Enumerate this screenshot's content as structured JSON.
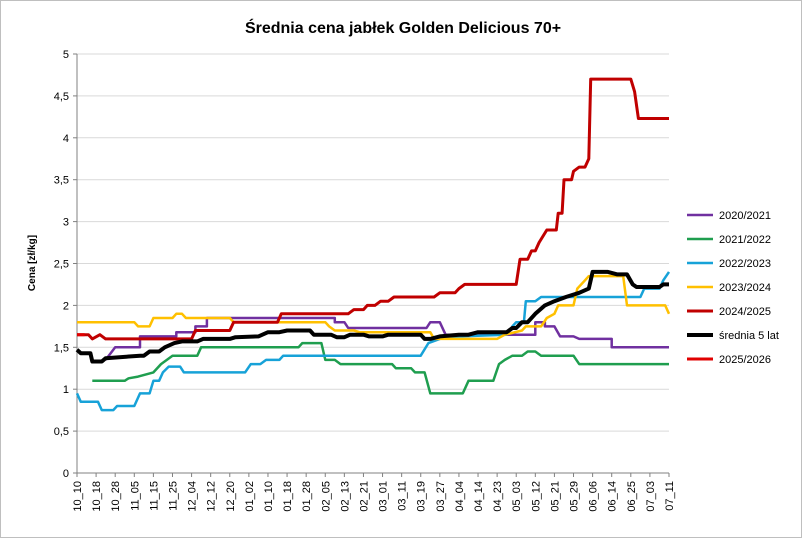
{
  "chart_data": {
    "type": "line",
    "title": "Średnia cena jabłek Golden Delicious 70+",
    "ylabel": "Cena [zł/kg]",
    "xlabel": "",
    "ylim": [
      0,
      5
    ],
    "y_ticks": [
      "0",
      "0,5",
      "1",
      "1,5",
      "2",
      "2,5",
      "3",
      "3,5",
      "4",
      "4,5",
      "5"
    ],
    "grid": "horizontal",
    "legend_position": "right",
    "x_ticks": [
      "10_10",
      "10_18",
      "10_28",
      "11_05",
      "11_15",
      "11_25",
      "12_04",
      "12_12",
      "12_20",
      "01_02",
      "01_10",
      "01_18",
      "01_28",
      "02_05",
      "02_13",
      "02_21",
      "03_01",
      "03_11",
      "03_19",
      "03_27",
      "04_04",
      "04_14",
      "04_23",
      "05_03",
      "05_12",
      "05_21",
      "05_29",
      "06_06",
      "06_14",
      "06_25",
      "07_03",
      "07_11"
    ],
    "series": [
      {
        "name": "2020/2021",
        "color": "#7030a0",
        "width": 2.5,
        "points": [
          [
            1.5,
            1.35
          ],
          [
            2,
            1.5
          ],
          [
            3.3,
            1.5
          ],
          [
            3.3,
            1.63
          ],
          [
            5.2,
            1.63
          ],
          [
            5.2,
            1.68
          ],
          [
            6.2,
            1.68
          ],
          [
            6.2,
            1.75
          ],
          [
            6.8,
            1.75
          ],
          [
            6.8,
            1.85
          ],
          [
            12.2,
            1.85
          ],
          [
            12.2,
            1.85
          ],
          [
            13.5,
            1.85
          ],
          [
            13.5,
            1.8
          ],
          [
            14,
            1.8
          ],
          [
            14.2,
            1.73
          ],
          [
            18.3,
            1.73
          ],
          [
            18.5,
            1.8
          ],
          [
            19,
            1.8
          ],
          [
            19.3,
            1.65
          ],
          [
            24,
            1.65
          ],
          [
            24,
            1.8
          ],
          [
            24.5,
            1.8
          ],
          [
            24.5,
            1.75
          ],
          [
            25,
            1.75
          ],
          [
            25.3,
            1.63
          ],
          [
            26,
            1.63
          ],
          [
            26.3,
            1.6
          ],
          [
            28,
            1.6
          ],
          [
            28,
            1.5
          ],
          [
            31,
            1.5
          ]
        ]
      },
      {
        "name": "2021/2022",
        "color": "#1f9e4f",
        "width": 2.5,
        "points": [
          [
            0.8,
            1.1
          ],
          [
            2.5,
            1.1
          ],
          [
            2.7,
            1.13
          ],
          [
            3.2,
            1.15
          ],
          [
            4,
            1.2
          ],
          [
            4.4,
            1.3
          ],
          [
            5,
            1.4
          ],
          [
            6.3,
            1.4
          ],
          [
            6.5,
            1.5
          ],
          [
            11.6,
            1.5
          ],
          [
            11.8,
            1.55
          ],
          [
            12.8,
            1.55
          ],
          [
            13,
            1.35
          ],
          [
            13.5,
            1.35
          ],
          [
            13.8,
            1.3
          ],
          [
            16.5,
            1.3
          ],
          [
            16.7,
            1.25
          ],
          [
            17.5,
            1.25
          ],
          [
            17.7,
            1.2
          ],
          [
            18.2,
            1.2
          ],
          [
            18.5,
            0.95
          ],
          [
            20.2,
            0.95
          ],
          [
            20.5,
            1.1
          ],
          [
            21.8,
            1.1
          ],
          [
            22.1,
            1.3
          ],
          [
            22.4,
            1.35
          ],
          [
            22.8,
            1.4
          ],
          [
            23.3,
            1.4
          ],
          [
            23.6,
            1.45
          ],
          [
            24,
            1.45
          ],
          [
            24.3,
            1.4
          ],
          [
            26,
            1.4
          ],
          [
            26.3,
            1.3
          ],
          [
            31,
            1.3
          ]
        ]
      },
      {
        "name": "2022/2023",
        "color": "#17a2d8",
        "width": 2.5,
        "points": [
          [
            0,
            0.95
          ],
          [
            0.2,
            0.85
          ],
          [
            1.1,
            0.85
          ],
          [
            1.3,
            0.75
          ],
          [
            1.9,
            0.75
          ],
          [
            2.1,
            0.8
          ],
          [
            3,
            0.8
          ],
          [
            3.3,
            0.95
          ],
          [
            3.8,
            0.95
          ],
          [
            4,
            1.1
          ],
          [
            4.3,
            1.1
          ],
          [
            4.5,
            1.2
          ],
          [
            4.8,
            1.27
          ],
          [
            5.4,
            1.27
          ],
          [
            5.6,
            1.2
          ],
          [
            8.8,
            1.2
          ],
          [
            9.1,
            1.3
          ],
          [
            9.6,
            1.3
          ],
          [
            9.9,
            1.35
          ],
          [
            10.6,
            1.35
          ],
          [
            10.8,
            1.4
          ],
          [
            18,
            1.4
          ],
          [
            18.4,
            1.55
          ],
          [
            19,
            1.6
          ],
          [
            20,
            1.63
          ],
          [
            22.5,
            1.65
          ],
          [
            22.8,
            1.75
          ],
          [
            23,
            1.8
          ],
          [
            23.4,
            1.8
          ],
          [
            23.5,
            2.05
          ],
          [
            24,
            2.05
          ],
          [
            24.3,
            2.1
          ],
          [
            25.5,
            2.1
          ],
          [
            25.8,
            2.1
          ],
          [
            29.5,
            2.1
          ],
          [
            29.7,
            2.2
          ],
          [
            30.5,
            2.2
          ],
          [
            30.7,
            2.3
          ],
          [
            31,
            2.4
          ]
        ]
      },
      {
        "name": "2023/2024",
        "color": "#ffc000",
        "width": 2.5,
        "points": [
          [
            0,
            1.8
          ],
          [
            3,
            1.8
          ],
          [
            3.2,
            1.75
          ],
          [
            3.8,
            1.75
          ],
          [
            4,
            1.85
          ],
          [
            5,
            1.85
          ],
          [
            5.2,
            1.9
          ],
          [
            5.5,
            1.9
          ],
          [
            5.7,
            1.85
          ],
          [
            8,
            1.85
          ],
          [
            8.2,
            1.8
          ],
          [
            13,
            1.8
          ],
          [
            13.2,
            1.75
          ],
          [
            13.5,
            1.7
          ],
          [
            14.5,
            1.7
          ],
          [
            14.8,
            1.68
          ],
          [
            18.5,
            1.68
          ],
          [
            18.7,
            1.6
          ],
          [
            22,
            1.6
          ],
          [
            22.4,
            1.65
          ],
          [
            23.3,
            1.7
          ],
          [
            23.5,
            1.75
          ],
          [
            24.3,
            1.75
          ],
          [
            24.6,
            1.85
          ],
          [
            25,
            1.9
          ],
          [
            25.2,
            2.0
          ],
          [
            26,
            2.0
          ],
          [
            26.2,
            2.2
          ],
          [
            26.6,
            2.3
          ],
          [
            26.8,
            2.35
          ],
          [
            28.6,
            2.35
          ],
          [
            28.8,
            2.0
          ],
          [
            30.8,
            2.0
          ],
          [
            31,
            1.9
          ]
        ]
      },
      {
        "name": "2024/2025",
        "color": "#c00000",
        "width": 3,
        "points": [
          [
            0,
            1.65
          ],
          [
            0.6,
            1.65
          ],
          [
            0.8,
            1.6
          ],
          [
            1.2,
            1.65
          ],
          [
            1.5,
            1.6
          ],
          [
            6,
            1.6
          ],
          [
            6.2,
            1.7
          ],
          [
            8,
            1.7
          ],
          [
            8.2,
            1.8
          ],
          [
            10.5,
            1.8
          ],
          [
            10.7,
            1.9
          ],
          [
            14.2,
            1.9
          ],
          [
            14.5,
            1.95
          ],
          [
            15,
            1.95
          ],
          [
            15.2,
            2.0
          ],
          [
            15.6,
            2.0
          ],
          [
            15.9,
            2.05
          ],
          [
            16.3,
            2.05
          ],
          [
            16.6,
            2.1
          ],
          [
            18.7,
            2.1
          ],
          [
            19,
            2.15
          ],
          [
            19.8,
            2.15
          ],
          [
            20,
            2.2
          ],
          [
            20.3,
            2.25
          ],
          [
            23,
            2.25
          ],
          [
            23.2,
            2.55
          ],
          [
            23.6,
            2.55
          ],
          [
            23.8,
            2.65
          ],
          [
            24,
            2.65
          ],
          [
            24.2,
            2.75
          ],
          [
            24.6,
            2.9
          ],
          [
            25.1,
            2.9
          ],
          [
            25.2,
            3.1
          ],
          [
            25.4,
            3.1
          ],
          [
            25.5,
            3.5
          ],
          [
            25.9,
            3.5
          ],
          [
            26,
            3.6
          ],
          [
            26.3,
            3.65
          ],
          [
            26.6,
            3.65
          ],
          [
            26.8,
            3.75
          ],
          [
            26.9,
            4.7
          ],
          [
            29,
            4.7
          ],
          [
            29.2,
            4.55
          ],
          [
            29.4,
            4.23
          ],
          [
            31,
            4.23
          ]
        ]
      },
      {
        "name": "średnia 5 lat",
        "color": "#000000",
        "width": 4,
        "points": [
          [
            0,
            1.47
          ],
          [
            0.2,
            1.43
          ],
          [
            0.7,
            1.43
          ],
          [
            0.8,
            1.33
          ],
          [
            1.3,
            1.33
          ],
          [
            1.5,
            1.37
          ],
          [
            3.3,
            1.4
          ],
          [
            3.5,
            1.4
          ],
          [
            3.8,
            1.45
          ],
          [
            4.3,
            1.45
          ],
          [
            4.6,
            1.5
          ],
          [
            5.1,
            1.55
          ],
          [
            5.5,
            1.57
          ],
          [
            6.3,
            1.57
          ],
          [
            6.6,
            1.6
          ],
          [
            8,
            1.6
          ],
          [
            8.3,
            1.62
          ],
          [
            9.5,
            1.63
          ],
          [
            10,
            1.68
          ],
          [
            10.6,
            1.68
          ],
          [
            11,
            1.7
          ],
          [
            12.2,
            1.7
          ],
          [
            12.4,
            1.65
          ],
          [
            13.3,
            1.65
          ],
          [
            13.6,
            1.62
          ],
          [
            14,
            1.62
          ],
          [
            14.3,
            1.65
          ],
          [
            15,
            1.65
          ],
          [
            15.3,
            1.63
          ],
          [
            16,
            1.63
          ],
          [
            16.3,
            1.65
          ],
          [
            18,
            1.65
          ],
          [
            18.2,
            1.6
          ],
          [
            18.5,
            1.6
          ],
          [
            19,
            1.63
          ],
          [
            20,
            1.65
          ],
          [
            20.5,
            1.65
          ],
          [
            21,
            1.68
          ],
          [
            22.5,
            1.68
          ],
          [
            22.8,
            1.73
          ],
          [
            23,
            1.73
          ],
          [
            23.3,
            1.8
          ],
          [
            23.6,
            1.8
          ],
          [
            24,
            1.9
          ],
          [
            24.5,
            2.0
          ],
          [
            25,
            2.05
          ],
          [
            25.6,
            2.1
          ],
          [
            26.3,
            2.15
          ],
          [
            26.8,
            2.2
          ],
          [
            27,
            2.4
          ],
          [
            27.8,
            2.4
          ],
          [
            28.3,
            2.37
          ],
          [
            28.8,
            2.37
          ],
          [
            29.1,
            2.25
          ],
          [
            29.3,
            2.22
          ],
          [
            30.5,
            2.22
          ],
          [
            30.7,
            2.25
          ],
          [
            31,
            2.25
          ]
        ]
      },
      {
        "name": "2025/2026",
        "color": "#e00000",
        "width": 3,
        "points": [
          [
            0,
            1.65
          ],
          [
            0.4,
            1.65
          ]
        ]
      }
    ]
  }
}
